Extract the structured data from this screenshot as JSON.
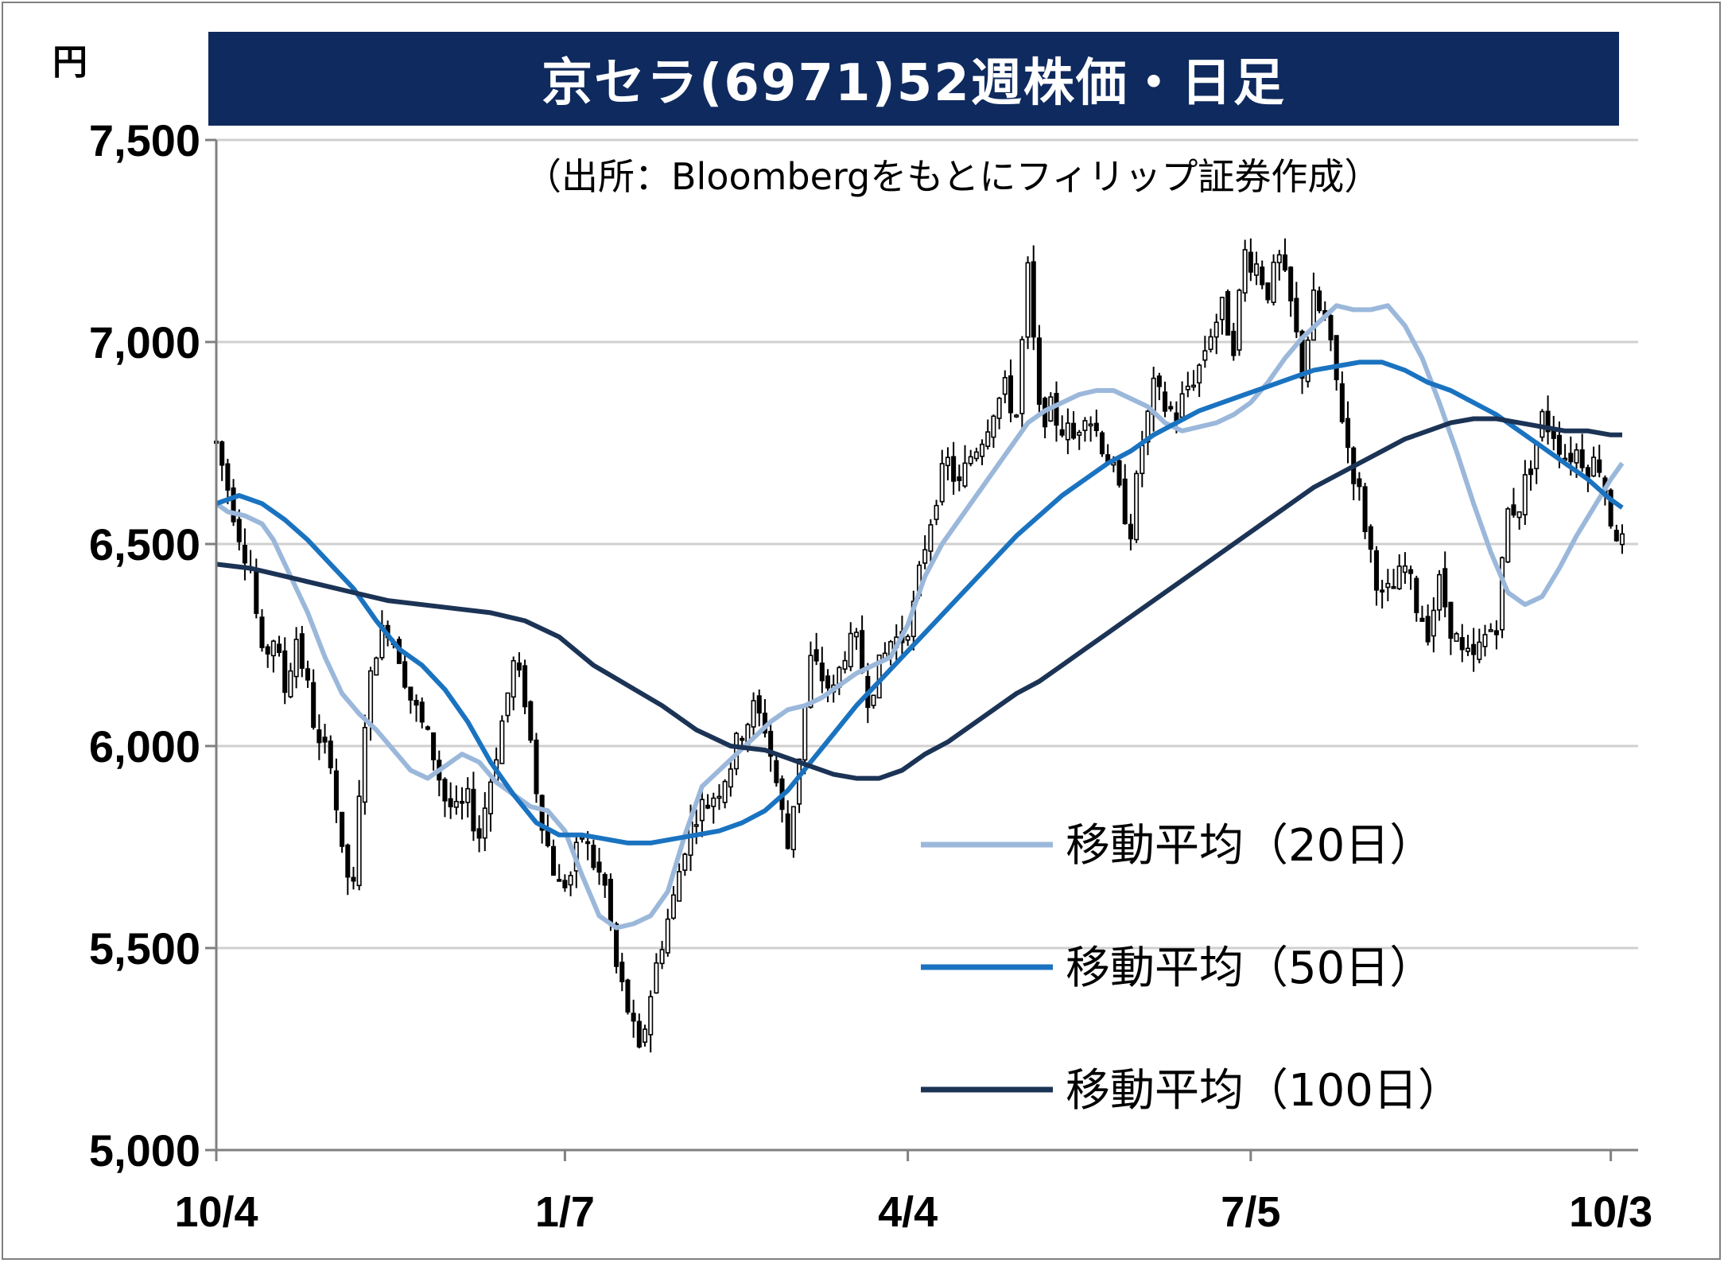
{
  "title": "京セラ(6971)52週株価・日足",
  "unit_label": "円",
  "source_note": "（出所：Bloombergをもとにフィリップ証券作成）",
  "chart_data": {
    "type": "candlestick",
    "title": "京セラ(6971)52週株価・日足",
    "ylabel": "円",
    "ylim": [
      5000,
      7500
    ],
    "y_ticks": [
      "5,000",
      "5,500",
      "6,000",
      "6,500",
      "7,000",
      "7,500"
    ],
    "y_tick_values": [
      5000,
      5500,
      6000,
      6500,
      7000,
      7500
    ],
    "x_ticks": [
      "10/4",
      "1/7",
      "4/4",
      "7/5",
      "10/3"
    ],
    "x_tick_days": [
      0,
      61,
      121,
      181,
      244
    ],
    "total_days": 246,
    "grid": true,
    "legend_position": "bottom-right",
    "series": [
      {
        "name": "移動平均（20日）",
        "color": "#9bb8db",
        "points": [
          [
            0,
            6600
          ],
          [
            2,
            6580
          ],
          [
            5,
            6570
          ],
          [
            8,
            6550
          ],
          [
            10,
            6510
          ],
          [
            13,
            6420
          ],
          [
            16,
            6330
          ],
          [
            19,
            6220
          ],
          [
            22,
            6130
          ],
          [
            25,
            6080
          ],
          [
            28,
            6040
          ],
          [
            31,
            5990
          ],
          [
            34,
            5940
          ],
          [
            37,
            5920
          ],
          [
            40,
            5950
          ],
          [
            43,
            5980
          ],
          [
            46,
            5960
          ],
          [
            49,
            5910
          ],
          [
            52,
            5880
          ],
          [
            55,
            5850
          ],
          [
            58,
            5840
          ],
          [
            61,
            5790
          ],
          [
            64,
            5680
          ],
          [
            67,
            5580
          ],
          [
            70,
            5550
          ],
          [
            73,
            5560
          ],
          [
            76,
            5580
          ],
          [
            79,
            5640
          ],
          [
            82,
            5780
          ],
          [
            85,
            5900
          ],
          [
            88,
            5940
          ],
          [
            91,
            5980
          ],
          [
            94,
            6020
          ],
          [
            97,
            6060
          ],
          [
            100,
            6090
          ],
          [
            103,
            6100
          ],
          [
            106,
            6120
          ],
          [
            109,
            6150
          ],
          [
            112,
            6180
          ],
          [
            115,
            6200
          ],
          [
            118,
            6220
          ],
          [
            121,
            6300
          ],
          [
            124,
            6420
          ],
          [
            127,
            6500
          ],
          [
            130,
            6560
          ],
          [
            133,
            6620
          ],
          [
            136,
            6680
          ],
          [
            139,
            6740
          ],
          [
            142,
            6800
          ],
          [
            145,
            6830
          ],
          [
            148,
            6850
          ],
          [
            151,
            6870
          ],
          [
            154,
            6880
          ],
          [
            157,
            6880
          ],
          [
            160,
            6860
          ],
          [
            163,
            6840
          ],
          [
            166,
            6800
          ],
          [
            169,
            6780
          ],
          [
            172,
            6790
          ],
          [
            175,
            6800
          ],
          [
            178,
            6820
          ],
          [
            181,
            6850
          ],
          [
            184,
            6900
          ],
          [
            187,
            6960
          ],
          [
            190,
            7010
          ],
          [
            193,
            7050
          ],
          [
            196,
            7090
          ],
          [
            199,
            7080
          ],
          [
            202,
            7080
          ],
          [
            205,
            7090
          ],
          [
            208,
            7040
          ],
          [
            211,
            6960
          ],
          [
            214,
            6850
          ],
          [
            217,
            6730
          ],
          [
            220,
            6600
          ],
          [
            223,
            6480
          ],
          [
            226,
            6380
          ],
          [
            229,
            6350
          ],
          [
            232,
            6370
          ],
          [
            235,
            6440
          ],
          [
            238,
            6520
          ],
          [
            241,
            6590
          ],
          [
            244,
            6660
          ],
          [
            246,
            6700
          ]
        ]
      },
      {
        "name": "移動平均（50日）",
        "color": "#1a73c0",
        "points": [
          [
            0,
            6600
          ],
          [
            4,
            6620
          ],
          [
            8,
            6600
          ],
          [
            12,
            6560
          ],
          [
            16,
            6510
          ],
          [
            20,
            6450
          ],
          [
            24,
            6390
          ],
          [
            28,
            6310
          ],
          [
            32,
            6240
          ],
          [
            36,
            6200
          ],
          [
            40,
            6140
          ],
          [
            44,
            6060
          ],
          [
            48,
            5960
          ],
          [
            52,
            5880
          ],
          [
            56,
            5810
          ],
          [
            60,
            5780
          ],
          [
            64,
            5780
          ],
          [
            68,
            5770
          ],
          [
            72,
            5760
          ],
          [
            76,
            5760
          ],
          [
            80,
            5770
          ],
          [
            84,
            5780
          ],
          [
            88,
            5790
          ],
          [
            92,
            5810
          ],
          [
            96,
            5840
          ],
          [
            100,
            5890
          ],
          [
            104,
            5960
          ],
          [
            108,
            6030
          ],
          [
            112,
            6100
          ],
          [
            116,
            6160
          ],
          [
            120,
            6220
          ],
          [
            124,
            6280
          ],
          [
            128,
            6340
          ],
          [
            132,
            6400
          ],
          [
            136,
            6460
          ],
          [
            140,
            6520
          ],
          [
            144,
            6570
          ],
          [
            148,
            6620
          ],
          [
            152,
            6660
          ],
          [
            156,
            6700
          ],
          [
            160,
            6730
          ],
          [
            164,
            6770
          ],
          [
            168,
            6800
          ],
          [
            172,
            6830
          ],
          [
            176,
            6850
          ],
          [
            180,
            6870
          ],
          [
            184,
            6890
          ],
          [
            188,
            6910
          ],
          [
            192,
            6930
          ],
          [
            196,
            6940
          ],
          [
            200,
            6950
          ],
          [
            204,
            6950
          ],
          [
            208,
            6930
          ],
          [
            212,
            6900
          ],
          [
            216,
            6880
          ],
          [
            220,
            6850
          ],
          [
            224,
            6820
          ],
          [
            228,
            6780
          ],
          [
            232,
            6740
          ],
          [
            236,
            6700
          ],
          [
            240,
            6660
          ],
          [
            244,
            6610
          ],
          [
            246,
            6590
          ]
        ]
      },
      {
        "name": "移動平均（100日）",
        "color": "#1b3355",
        "points": [
          [
            0,
            6450
          ],
          [
            6,
            6440
          ],
          [
            12,
            6420
          ],
          [
            18,
            6400
          ],
          [
            24,
            6380
          ],
          [
            30,
            6360
          ],
          [
            36,
            6350
          ],
          [
            42,
            6340
          ],
          [
            48,
            6330
          ],
          [
            54,
            6310
          ],
          [
            60,
            6270
          ],
          [
            66,
            6200
          ],
          [
            72,
            6150
          ],
          [
            78,
            6100
          ],
          [
            84,
            6040
          ],
          [
            90,
            6000
          ],
          [
            96,
            5990
          ],
          [
            100,
            5970
          ],
          [
            104,
            5950
          ],
          [
            108,
            5930
          ],
          [
            112,
            5920
          ],
          [
            116,
            5920
          ],
          [
            120,
            5940
          ],
          [
            124,
            5980
          ],
          [
            128,
            6010
          ],
          [
            132,
            6050
          ],
          [
            136,
            6090
          ],
          [
            140,
            6130
          ],
          [
            144,
            6160
          ],
          [
            148,
            6200
          ],
          [
            152,
            6240
          ],
          [
            156,
            6280
          ],
          [
            160,
            6320
          ],
          [
            164,
            6360
          ],
          [
            168,
            6400
          ],
          [
            172,
            6440
          ],
          [
            176,
            6480
          ],
          [
            180,
            6520
          ],
          [
            184,
            6560
          ],
          [
            188,
            6600
          ],
          [
            192,
            6640
          ],
          [
            196,
            6670
          ],
          [
            200,
            6700
          ],
          [
            204,
            6730
          ],
          [
            208,
            6760
          ],
          [
            212,
            6780
          ],
          [
            216,
            6800
          ],
          [
            220,
            6810
          ],
          [
            224,
            6810
          ],
          [
            228,
            6800
          ],
          [
            232,
            6790
          ],
          [
            236,
            6780
          ],
          [
            240,
            6780
          ],
          [
            244,
            6770
          ],
          [
            246,
            6770
          ]
        ]
      }
    ],
    "price_path": [
      [
        0,
        6750
      ],
      [
        2,
        6640
      ],
      [
        4,
        6530
      ],
      [
        6,
        6440
      ],
      [
        8,
        6210
      ],
      [
        10,
        6270
      ],
      [
        12,
        6140
      ],
      [
        14,
        6270
      ],
      [
        16,
        6140
      ],
      [
        18,
        5990
      ],
      [
        20,
        5980
      ],
      [
        22,
        5720
      ],
      [
        24,
        5640
      ],
      [
        26,
        6070
      ],
      [
        28,
        6250
      ],
      [
        30,
        6300
      ],
      [
        32,
        6230
      ],
      [
        34,
        6120
      ],
      [
        36,
        6050
      ],
      [
        38,
        5980
      ],
      [
        40,
        5870
      ],
      [
        42,
        5830
      ],
      [
        44,
        5860
      ],
      [
        46,
        5780
      ],
      [
        48,
        5920
      ],
      [
        50,
        6060
      ],
      [
        52,
        6200
      ],
      [
        54,
        6120
      ],
      [
        56,
        5900
      ],
      [
        58,
        5750
      ],
      [
        60,
        5650
      ],
      [
        62,
        5680
      ],
      [
        64,
        5780
      ],
      [
        66,
        5710
      ],
      [
        68,
        5650
      ],
      [
        70,
        5450
      ],
      [
        72,
        5350
      ],
      [
        74,
        5230
      ],
      [
        76,
        5390
      ],
      [
        78,
        5520
      ],
      [
        80,
        5620
      ],
      [
        82,
        5760
      ],
      [
        84,
        5840
      ],
      [
        86,
        5860
      ],
      [
        88,
        5900
      ],
      [
        90,
        5960
      ],
      [
        92,
        6040
      ],
      [
        94,
        6090
      ],
      [
        96,
        6050
      ],
      [
        98,
        5910
      ],
      [
        100,
        5750
      ],
      [
        102,
        5980
      ],
      [
        104,
        6210
      ],
      [
        106,
        6170
      ],
      [
        108,
        6130
      ],
      [
        110,
        6240
      ],
      [
        112,
        6250
      ],
      [
        114,
        6130
      ],
      [
        116,
        6190
      ],
      [
        118,
        6260
      ],
      [
        120,
        6270
      ],
      [
        122,
        6340
      ],
      [
        124,
        6500
      ],
      [
        126,
        6630
      ],
      [
        128,
        6700
      ],
      [
        130,
        6640
      ],
      [
        132,
        6720
      ],
      [
        134,
        6770
      ],
      [
        136,
        6840
      ],
      [
        138,
        6880
      ],
      [
        140,
        6820
      ],
      [
        142,
        7170
      ],
      [
        144,
        6820
      ],
      [
        146,
        6830
      ],
      [
        148,
        6790
      ],
      [
        150,
        6760
      ],
      [
        152,
        6840
      ],
      [
        154,
        6780
      ],
      [
        156,
        6720
      ],
      [
        158,
        6620
      ],
      [
        160,
        6540
      ],
      [
        162,
        6750
      ],
      [
        164,
        6880
      ],
      [
        166,
        6840
      ],
      [
        168,
        6820
      ],
      [
        170,
        6890
      ],
      [
        172,
        6940
      ],
      [
        174,
        7030
      ],
      [
        176,
        7080
      ],
      [
        178,
        7000
      ],
      [
        180,
        7220
      ],
      [
        182,
        7190
      ],
      [
        184,
        7130
      ],
      [
        186,
        7200
      ],
      [
        188,
        7090
      ],
      [
        190,
        6930
      ],
      [
        192,
        7100
      ],
      [
        194,
        7050
      ],
      [
        196,
        6900
      ],
      [
        198,
        6740
      ],
      [
        200,
        6620
      ],
      [
        202,
        6480
      ],
      [
        204,
        6360
      ],
      [
        206,
        6390
      ],
      [
        208,
        6440
      ],
      [
        210,
        6350
      ],
      [
        212,
        6290
      ],
      [
        214,
        6400
      ],
      [
        216,
        6300
      ],
      [
        218,
        6220
      ],
      [
        220,
        6210
      ],
      [
        222,
        6270
      ],
      [
        224,
        6310
      ],
      [
        226,
        6580
      ],
      [
        228,
        6600
      ],
      [
        230,
        6700
      ],
      [
        232,
        6810
      ],
      [
        234,
        6780
      ],
      [
        236,
        6720
      ],
      [
        238,
        6730
      ],
      [
        240,
        6700
      ],
      [
        242,
        6700
      ],
      [
        244,
        6560
      ],
      [
        246,
        6500
      ]
    ],
    "legend_entries": [
      "移動平均（20日）",
      "移動平均（50日）",
      "移動平均（100日）"
    ]
  }
}
